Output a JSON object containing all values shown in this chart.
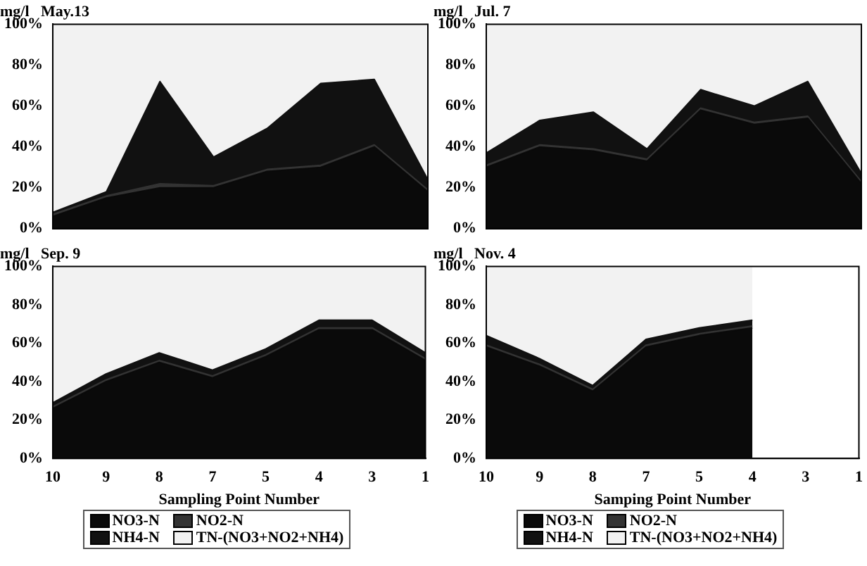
{
  "chart_data": [
    {
      "type": "area",
      "title": "mg/l   May.13",
      "stacked": true,
      "categories": [
        "10",
        "9",
        "8",
        "7",
        "5",
        "4",
        "3",
        "1"
      ],
      "ylim": [
        0,
        100
      ],
      "yticks": [
        {
          "value": 0,
          "label": "0%"
        },
        {
          "value": 20,
          "label": "20%"
        },
        {
          "value": 40,
          "label": "40%"
        },
        {
          "value": 60,
          "label": "60%"
        },
        {
          "value": 80,
          "label": "80%"
        },
        {
          "value": 100,
          "label": "100%"
        }
      ],
      "tick_labels": "y",
      "legend": false,
      "marker": "none",
      "series": [
        {
          "color": "#0a0a0a",
          "values": [
            6,
            15,
            20,
            20,
            28,
            30,
            40,
            18
          ]
        },
        {
          "color": "#333333",
          "values": [
            1,
            1,
            2,
            1,
            1,
            1,
            1,
            1
          ]
        },
        {
          "color": "#111111",
          "values": [
            1,
            2,
            50,
            14,
            20,
            40,
            32,
            5
          ]
        },
        {
          "color": "#f2f2f2",
          "values": [
            92,
            82,
            28,
            65,
            51,
            29,
            27,
            76
          ]
        }
      ]
    },
    {
      "type": "area",
      "title": "mg/l   Jul. 7",
      "stacked": true,
      "categories": [
        "10",
        "9",
        "8",
        "7",
        "5",
        "4",
        "3",
        "1"
      ],
      "ylim": [
        0,
        100
      ],
      "yticks": [
        {
          "value": 0,
          "label": "0%"
        },
        {
          "value": 20,
          "label": "20%"
        },
        {
          "value": 40,
          "label": "40%"
        },
        {
          "value": 60,
          "label": "60%"
        },
        {
          "value": 80,
          "label": "80%"
        },
        {
          "value": 100,
          "label": "100%"
        }
      ],
      "tick_labels": "y",
      "legend": false,
      "marker": "none",
      "series": [
        {
          "color": "#0a0a0a",
          "values": [
            30,
            40,
            38,
            33,
            58,
            51,
            54,
            22
          ]
        },
        {
          "color": "#333333",
          "values": [
            1,
            1,
            1,
            1,
            1,
            1,
            1,
            1
          ]
        },
        {
          "color": "#111111",
          "values": [
            6,
            12,
            18,
            5,
            9,
            8,
            17,
            4
          ]
        },
        {
          "color": "#f2f2f2",
          "values": [
            63,
            47,
            43,
            61,
            32,
            40,
            28,
            73
          ]
        }
      ]
    },
    {
      "type": "area",
      "title": "mg/l   Sep. 9",
      "stacked": true,
      "xlabel": "Sampling Point Number",
      "categories": [
        "10",
        "9",
        "8",
        "7",
        "5",
        "4",
        "3",
        "1"
      ],
      "ylim": [
        0,
        100
      ],
      "yticks": [
        {
          "value": 0,
          "label": "0%"
        },
        {
          "value": 20,
          "label": "20%"
        },
        {
          "value": 40,
          "label": "40%"
        },
        {
          "value": 60,
          "label": "60%"
        },
        {
          "value": 80,
          "label": "80%"
        },
        {
          "value": 100,
          "label": "100%"
        }
      ],
      "legend": "bottom",
      "marker": "none",
      "series": [
        {
          "name": "NO3-N",
          "color": "#0a0a0a",
          "values": [
            26,
            40,
            50,
            42,
            53,
            67,
            67,
            51
          ]
        },
        {
          "name": "NO2-N",
          "color": "#333333",
          "values": [
            1,
            1,
            1,
            1,
            1,
            1,
            1,
            1
          ]
        },
        {
          "name": "NH4-N",
          "color": "#111111",
          "values": [
            2,
            3,
            4,
            3,
            3,
            4,
            4,
            3
          ]
        },
        {
          "name": "TN-(NO3+NO2+NH4)",
          "color": "#f2f2f2",
          "values": [
            71,
            56,
            45,
            54,
            43,
            28,
            28,
            45
          ]
        }
      ]
    },
    {
      "type": "area",
      "title": "mg/l   Nov. 4",
      "stacked": true,
      "xlabel": "Samping Point Number",
      "categories": [
        "10",
        "9",
        "8",
        "7",
        "5",
        "4",
        "3",
        "1"
      ],
      "ylim": [
        0,
        100
      ],
      "yticks": [
        {
          "value": 0,
          "label": "0%"
        },
        {
          "value": 20,
          "label": "20%"
        },
        {
          "value": 40,
          "label": "40%"
        },
        {
          "value": 60,
          "label": "60%"
        },
        {
          "value": 80,
          "label": "80%"
        },
        {
          "value": 100,
          "label": "100%"
        }
      ],
      "legend": "bottom",
      "marker": "none",
      "series": [
        {
          "name": "NO3-N",
          "color": "#0a0a0a",
          "values": [
            58,
            48,
            35,
            58,
            64,
            68,
            null,
            null
          ]
        },
        {
          "name": "NO2-N",
          "color": "#333333",
          "values": [
            1,
            1,
            1,
            1,
            1,
            1,
            null,
            null
          ]
        },
        {
          "name": "NH4-N",
          "color": "#111111",
          "values": [
            5,
            3,
            2,
            3,
            3,
            3,
            null,
            null
          ]
        },
        {
          "name": "TN-(NO3+NO2+NH4)",
          "color": "#f2f2f2",
          "values": [
            36,
            48,
            62,
            38,
            32,
            28,
            null,
            null
          ]
        }
      ]
    }
  ]
}
